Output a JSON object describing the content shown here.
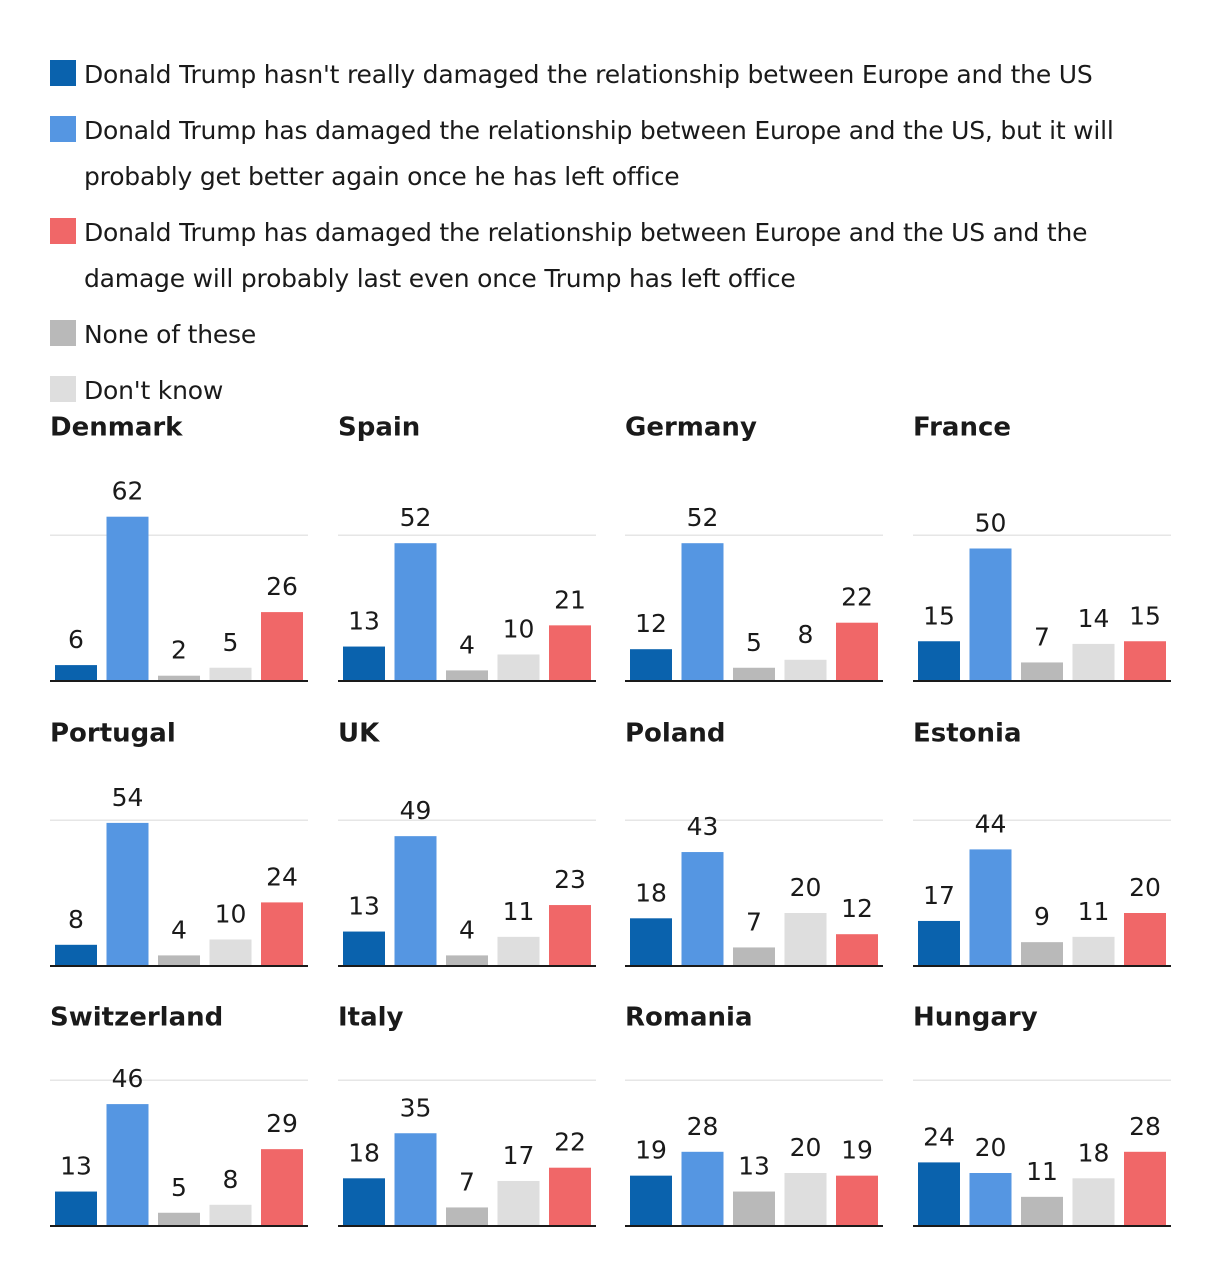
{
  "colors": {
    "hasnt_damaged": "#0a62ad",
    "damaged_will_improve": "#5596e2",
    "damaged_will_last": "#f06768",
    "none_of_these": "#b9b9b9",
    "dont_know": "#dedede"
  },
  "legend": [
    {
      "key": "hasnt_damaged",
      "label": "Donald Trump hasn't really damaged the relationship between Europe and the US"
    },
    {
      "key": "damaged_will_improve",
      "label": "Donald Trump has damaged the relationship between Europe and the US, but it will probably get better again once he has left office"
    },
    {
      "key": "damaged_will_last",
      "label": "Donald Trump has damaged the relationship between Europe and the US and the damage will probably last even once Trump has left office"
    },
    {
      "key": "none_of_these",
      "label": "None of these"
    },
    {
      "key": "dont_know",
      "label": "Don't know"
    }
  ],
  "chart_data": {
    "type": "bar",
    "ylim": [
      0,
      100
    ],
    "bar_order": [
      "hasnt_damaged",
      "damaged_will_improve",
      "none_of_these",
      "dont_know",
      "damaged_will_last"
    ],
    "panels": [
      {
        "country": "Denmark",
        "values": {
          "hasnt_damaged": 6,
          "damaged_will_improve": 62,
          "none_of_these": 2,
          "dont_know": 5,
          "damaged_will_last": 26
        }
      },
      {
        "country": "Spain",
        "values": {
          "hasnt_damaged": 13,
          "damaged_will_improve": 52,
          "none_of_these": 4,
          "dont_know": 10,
          "damaged_will_last": 21
        }
      },
      {
        "country": "Germany",
        "values": {
          "hasnt_damaged": 12,
          "damaged_will_improve": 52,
          "none_of_these": 5,
          "dont_know": 8,
          "damaged_will_last": 22
        }
      },
      {
        "country": "France",
        "values": {
          "hasnt_damaged": 15,
          "damaged_will_improve": 50,
          "none_of_these": 7,
          "dont_know": 14,
          "damaged_will_last": 15
        }
      },
      {
        "country": "Portugal",
        "values": {
          "hasnt_damaged": 8,
          "damaged_will_improve": 54,
          "none_of_these": 4,
          "dont_know": 10,
          "damaged_will_last": 24
        }
      },
      {
        "country": "UK",
        "values": {
          "hasnt_damaged": 13,
          "damaged_will_improve": 49,
          "none_of_these": 4,
          "dont_know": 11,
          "damaged_will_last": 23
        }
      },
      {
        "country": "Poland",
        "values": {
          "hasnt_damaged": 18,
          "damaged_will_improve": 43,
          "none_of_these": 7,
          "dont_know": 20,
          "damaged_will_last": 12
        }
      },
      {
        "country": "Estonia",
        "values": {
          "hasnt_damaged": 17,
          "damaged_will_improve": 44,
          "none_of_these": 9,
          "dont_know": 11,
          "damaged_will_last": 20
        }
      },
      {
        "country": "Switzerland",
        "values": {
          "hasnt_damaged": 13,
          "damaged_will_improve": 46,
          "none_of_these": 5,
          "dont_know": 8,
          "damaged_will_last": 29
        }
      },
      {
        "country": "Italy",
        "values": {
          "hasnt_damaged": 18,
          "damaged_will_improve": 35,
          "none_of_these": 7,
          "dont_know": 17,
          "damaged_will_last": 22
        }
      },
      {
        "country": "Romania",
        "values": {
          "hasnt_damaged": 19,
          "damaged_will_improve": 28,
          "none_of_these": 13,
          "dont_know": 20,
          "damaged_will_last": 19
        }
      },
      {
        "country": "Hungary",
        "values": {
          "hasnt_damaged": 24,
          "damaged_will_improve": 20,
          "none_of_these": 11,
          "dont_know": 18,
          "damaged_will_last": 28
        }
      }
    ]
  }
}
